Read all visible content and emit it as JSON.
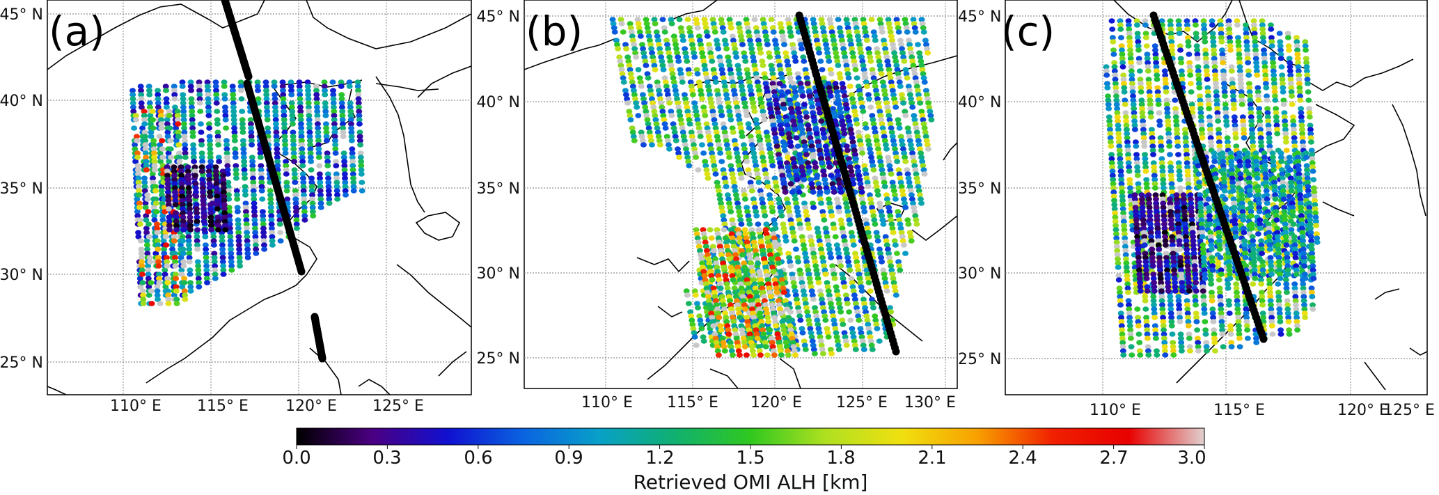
{
  "figure": {
    "panels": [
      {
        "letter": "(a)",
        "lat_labels": [
          "45° N",
          "40° N",
          "35° N",
          "30° N",
          "25° N"
        ],
        "lon_labels": [
          "110° E",
          "115° E",
          "120° E",
          "125° E"
        ]
      },
      {
        "letter": "(b)",
        "lat_labels": [
          "45° N",
          "40° N",
          "35° N",
          "30° N",
          "25° N"
        ],
        "lon_labels": [
          "110° E",
          "115° E",
          "120° E",
          "125° E",
          "130° E"
        ]
      },
      {
        "letter": "(c)",
        "lat_labels": [
          "45° N",
          "40° N",
          "35° N",
          "30° N",
          "25° N"
        ],
        "lon_labels": [
          "110° E",
          "115° E",
          "120° E",
          "125° E"
        ]
      }
    ],
    "colorbar": {
      "ticks": [
        "0.0",
        "0.3",
        "0.6",
        "0.9",
        "1.2",
        "1.5",
        "1.8",
        "2.1",
        "2.4",
        "2.7",
        "3.0"
      ],
      "title": "Retrieved OMI ALH [km]",
      "stops": [
        "#000000",
        "#4b0082",
        "#1010d0",
        "#0a64e0",
        "#08a0c8",
        "#10b070",
        "#30c820",
        "#b0e020",
        "#f0e010",
        "#f8a000",
        "#f02000",
        "#e80000",
        "#e0d0d0"
      ]
    },
    "colors": {
      "no_data": "#c8c8c8",
      "track": "#000000",
      "coast": "#000000",
      "grid": "#777777"
    }
  }
}
